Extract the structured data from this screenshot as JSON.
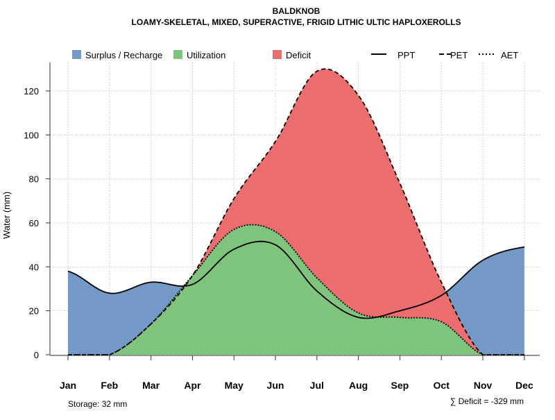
{
  "chart_data": {
    "type": "area",
    "title": "BALDKNOB",
    "subtitle": "LOAMY-SKELETAL, MIXED, SUPERACTIVE, FRIGID LITHIC ULTIC HAPLOXEROLLS",
    "xlabel": "",
    "ylabel": "Water (mm)",
    "ylim": [
      0,
      130
    ],
    "yticks": [
      0,
      20,
      40,
      60,
      80,
      100,
      120
    ],
    "categories": [
      "Jan",
      "Feb",
      "Mar",
      "Apr",
      "May",
      "Jun",
      "Jul",
      "Aug",
      "Sep",
      "Oct",
      "Nov",
      "Dec"
    ],
    "grid": true,
    "legend_position": "top",
    "legend": {
      "areas": [
        {
          "label": "Surplus / Recharge",
          "color": "#7399C6"
        },
        {
          "label": "Utilization",
          "color": "#7FC47C"
        },
        {
          "label": "Deficit",
          "color": "#EB6D6D"
        }
      ],
      "lines": [
        {
          "label": "PPT",
          "style": "solid"
        },
        {
          "label": "PET",
          "style": "dashed"
        },
        {
          "label": "AET",
          "style": "dotted"
        }
      ]
    },
    "series": [
      {
        "name": "PPT",
        "values": [
          38,
          28,
          33,
          32,
          48,
          50,
          29,
          17,
          20,
          27,
          43,
          49
        ]
      },
      {
        "name": "PET",
        "values": [
          0,
          0,
          14,
          36,
          71,
          97,
          129,
          118,
          78,
          33,
          0,
          0
        ]
      },
      {
        "name": "AET",
        "values": [
          0,
          0,
          14,
          36,
          57,
          56,
          35,
          19,
          17,
          15,
          0,
          0
        ]
      }
    ],
    "annotations": {
      "storage": "Storage: 32 mm",
      "deficit": "∑ Deficit = -329 mm"
    }
  }
}
